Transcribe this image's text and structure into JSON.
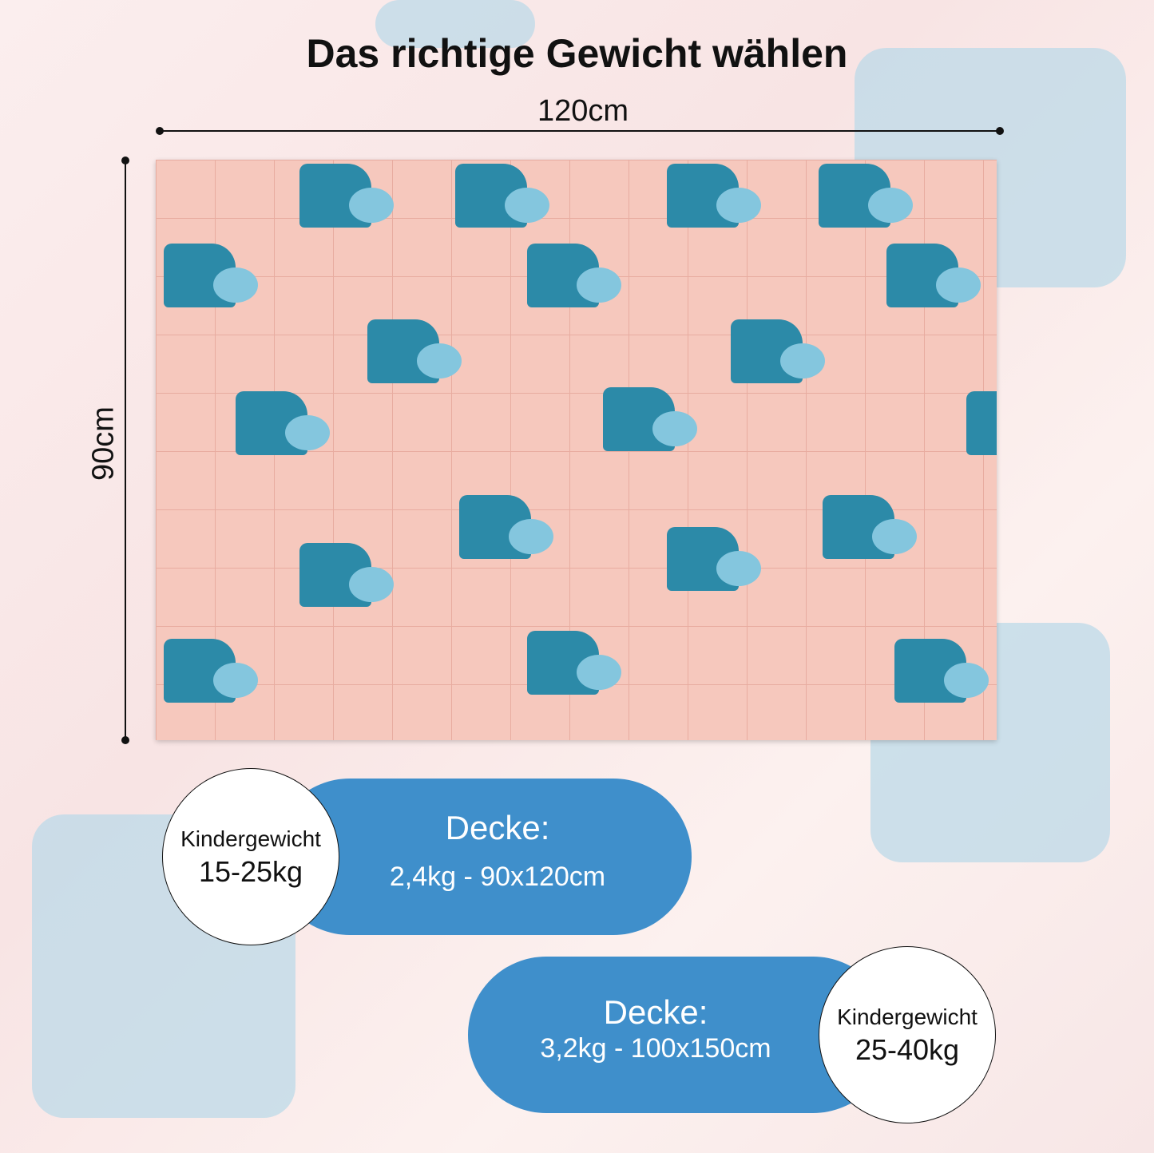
{
  "title": "Das richtige Gewicht wählen",
  "dimensions": {
    "width": "120cm",
    "height": "90cm"
  },
  "options": [
    {
      "circle_label": "Kindergewicht",
      "circle_value": "15-25kg",
      "pill_title": "Decke:",
      "pill_detail": "2,4kg - 90x120cm"
    },
    {
      "circle_label": "Kindergewicht",
      "circle_value": "25-40kg",
      "pill_title": "Decke:",
      "pill_detail": "3,2kg - 100x150cm"
    }
  ],
  "colors": {
    "pill": "#3f8fcb",
    "blanket": "#f6c8bd",
    "hippo": "#2c8aa8"
  }
}
